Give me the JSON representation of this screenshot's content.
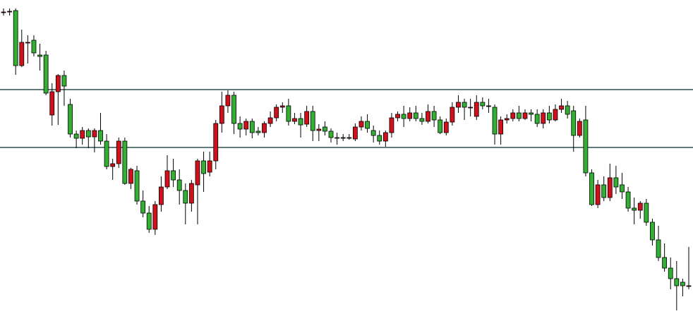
{
  "chart_data": {
    "type": "candlestick",
    "ylim": [
      0,
      455
    ],
    "rising_color": "#d0101a",
    "falling_color": "#33b033",
    "outline_color": "#000000",
    "levels": [
      328,
      246
    ],
    "level_color": "#2f4f4f",
    "values": [
      [
        438,
        443,
        433,
        438
      ],
      [
        439,
        443,
        433,
        439
      ],
      [
        440,
        443,
        349,
        362
      ],
      [
        362,
        413,
        360,
        395
      ],
      [
        395,
        405,
        365,
        395
      ],
      [
        398,
        405,
        375,
        380
      ],
      [
        377,
        393,
        355,
        375
      ],
      [
        377,
        383,
        320,
        323
      ],
      [
        292,
        337,
        277,
        325
      ],
      [
        325,
        350,
        278,
        348
      ],
      [
        348,
        355,
        305,
        333
      ],
      [
        307,
        315,
        260,
        265
      ],
      [
        265,
        270,
        245,
        259
      ],
      [
        259,
        275,
        250,
        270
      ],
      [
        270,
        273,
        245,
        261
      ],
      [
        261,
        273,
        239,
        270
      ],
      [
        270,
        295,
        250,
        255
      ],
      [
        255,
        265,
        215,
        219
      ],
      [
        219,
        230,
        200,
        223
      ],
      [
        223,
        260,
        217,
        255
      ],
      [
        255,
        260,
        193,
        195
      ],
      [
        195,
        217,
        187,
        215
      ],
      [
        213,
        220,
        165,
        170
      ],
      [
        170,
        185,
        147,
        153
      ],
      [
        153,
        163,
        125,
        130
      ],
      [
        130,
        170,
        122,
        165
      ],
      [
        165,
        205,
        155,
        190
      ],
      [
        190,
        235,
        187,
        213
      ],
      [
        213,
        230,
        190,
        200
      ],
      [
        200,
        215,
        165,
        185
      ],
      [
        185,
        195,
        137,
        167
      ],
      [
        167,
        200,
        155,
        195
      ],
      [
        193,
        230,
        137,
        227
      ],
      [
        227,
        240,
        183,
        209
      ],
      [
        211,
        240,
        205,
        227
      ],
      [
        227,
        285,
        215,
        280
      ],
      [
        280,
        325,
        267,
        305
      ],
      [
        305,
        327,
        295,
        320
      ],
      [
        320,
        325,
        265,
        280
      ],
      [
        280,
        290,
        260,
        272
      ],
      [
        272,
        287,
        263,
        283
      ],
      [
        283,
        287,
        259,
        267
      ],
      [
        269,
        275,
        263,
        267
      ],
      [
        267,
        283,
        260,
        280
      ],
      [
        280,
        297,
        275,
        288
      ],
      [
        288,
        307,
        283,
        303
      ],
      [
        303,
        310,
        295,
        305
      ],
      [
        305,
        315,
        277,
        283
      ],
      [
        283,
        295,
        279,
        287
      ],
      [
        287,
        295,
        260,
        278
      ],
      [
        279,
        305,
        275,
        297
      ],
      [
        297,
        305,
        255,
        270
      ],
      [
        270,
        279,
        255,
        272
      ],
      [
        275,
        283,
        263,
        269
      ],
      [
        269,
        273,
        253,
        260
      ],
      [
        260,
        267,
        250,
        259
      ],
      [
        259,
        265,
        255,
        260
      ],
      [
        260,
        265,
        257,
        259
      ],
      [
        258,
        280,
        255,
        275
      ],
      [
        275,
        290,
        270,
        283
      ],
      [
        283,
        293,
        267,
        273
      ],
      [
        270,
        277,
        253,
        263
      ],
      [
        263,
        270,
        250,
        255
      ],
      [
        255,
        270,
        247,
        267
      ],
      [
        267,
        295,
        260,
        288
      ],
      [
        288,
        297,
        283,
        293
      ],
      [
        293,
        305,
        275,
        287
      ],
      [
        287,
        303,
        283,
        295
      ],
      [
        295,
        305,
        283,
        287
      ],
      [
        287,
        295,
        278,
        283
      ],
      [
        283,
        307,
        280,
        297
      ],
      [
        297,
        305,
        275,
        285
      ],
      [
        285,
        290,
        265,
        267
      ],
      [
        267,
        287,
        263,
        282
      ],
      [
        282,
        310,
        277,
        303
      ],
      [
        303,
        320,
        295,
        310
      ],
      [
        310,
        315,
        285,
        303
      ],
      [
        303,
        315,
        290,
        303
      ],
      [
        290,
        320,
        285,
        310
      ],
      [
        310,
        317,
        300,
        305
      ],
      [
        305,
        315,
        295,
        305
      ],
      [
        303,
        307,
        250,
        265
      ],
      [
        265,
        290,
        250,
        285
      ],
      [
        285,
        293,
        280,
        287
      ],
      [
        287,
        300,
        283,
        295
      ],
      [
        295,
        305,
        283,
        287
      ],
      [
        287,
        300,
        285,
        295
      ],
      [
        295,
        300,
        283,
        293
      ],
      [
        293,
        300,
        275,
        280
      ],
      [
        280,
        300,
        273,
        295
      ],
      [
        295,
        305,
        280,
        285
      ],
      [
        285,
        307,
        283,
        300
      ],
      [
        300,
        315,
        295,
        305
      ],
      [
        305,
        312,
        287,
        293
      ],
      [
        298,
        305,
        240,
        263
      ],
      [
        263,
        287,
        260,
        283
      ],
      [
        285,
        305,
        205,
        210
      ],
      [
        210,
        215,
        163,
        165
      ],
      [
        165,
        200,
        160,
        193
      ],
      [
        193,
        205,
        170,
        175
      ],
      [
        175,
        223,
        170,
        203
      ],
      [
        203,
        220,
        180,
        190
      ],
      [
        193,
        210,
        173,
        183
      ],
      [
        183,
        190,
        155,
        160
      ],
      [
        160,
        175,
        137,
        157
      ],
      [
        157,
        170,
        145,
        167
      ],
      [
        167,
        173,
        135,
        140
      ],
      [
        140,
        145,
        107,
        115
      ],
      [
        115,
        135,
        85,
        90
      ],
      [
        90,
        110,
        70,
        75
      ],
      [
        75,
        90,
        45,
        60
      ],
      [
        60,
        85,
        15,
        50
      ],
      [
        55,
        60,
        35,
        50
      ],
      [
        50,
        105,
        45,
        50
      ]
    ]
  }
}
